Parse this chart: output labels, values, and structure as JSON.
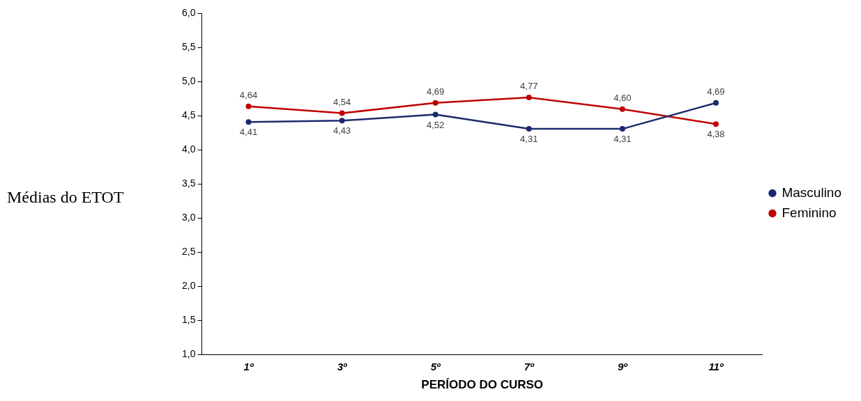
{
  "chart_data": {
    "type": "line",
    "ylabel": "Médias do ETOT",
    "xlabel": "PERÍODO DO CURSO",
    "categories": [
      "1º",
      "3º",
      "5º",
      "7º",
      "9º",
      "11º"
    ],
    "series": [
      {
        "name": "Masculino",
        "color": "#1b2a6b",
        "values": [
          4.41,
          4.43,
          4.52,
          4.31,
          4.31,
          4.69
        ],
        "value_labels": [
          "4,41",
          "4,43",
          "4,52",
          "4,31",
          "4,31",
          "4,69"
        ]
      },
      {
        "name": "Feminino",
        "color": "#c00000",
        "values": [
          4.64,
          4.54,
          4.69,
          4.77,
          4.6,
          4.38
        ],
        "value_labels": [
          "4,64",
          "4,54",
          "4,69",
          "4,77",
          "4,60",
          "4,38"
        ]
      }
    ],
    "ylim": [
      1.0,
      6.0
    ],
    "yticks": [
      {
        "value": 1.0,
        "label": "1,0"
      },
      {
        "value": 1.5,
        "label": "1,5"
      },
      {
        "value": 2.0,
        "label": "2,0"
      },
      {
        "value": 2.5,
        "label": "2,5"
      },
      {
        "value": 3.0,
        "label": "3,0"
      },
      {
        "value": 3.5,
        "label": "3,5"
      },
      {
        "value": 4.0,
        "label": "4,0"
      },
      {
        "value": 4.5,
        "label": "4,5"
      },
      {
        "value": 5.0,
        "label": "5,0"
      },
      {
        "value": 5.5,
        "label": "5,5"
      },
      {
        "value": 6.0,
        "label": "6,0"
      }
    ],
    "grid": false,
    "legend": "right",
    "marker": "circle",
    "line_style": "solid"
  }
}
